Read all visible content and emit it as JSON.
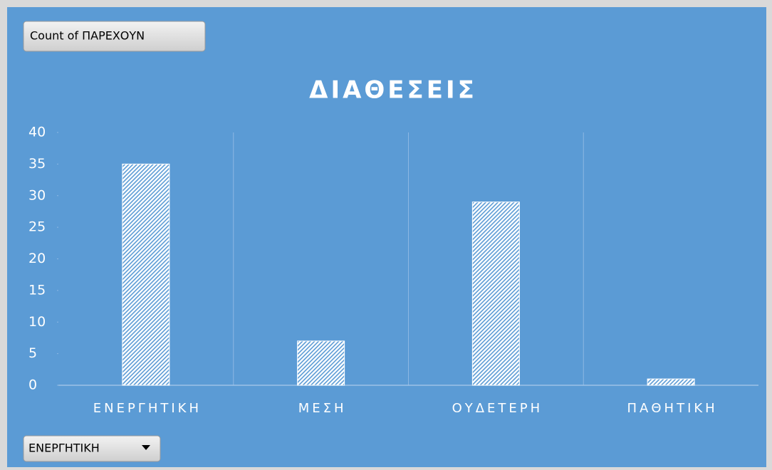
{
  "chart_data": {
    "type": "bar",
    "title": "ΔΙΑΘΕΣΕΙΣ",
    "value_field_button": "Count of ΠΑΡΕΧΟΥΝ",
    "axis_field_button": "ΕΝΕΡΓΗΤΙΚΗ",
    "categories": [
      "ΕΝΕΡΓΗΤΙΚΗ",
      "ΜΕΣΗ",
      "ΟΥΔΕΤΕΡΗ",
      "ΠΑΘΗΤΙΚΗ"
    ],
    "values": [
      35,
      7,
      29,
      1
    ],
    "color": "#ffffff",
    "ylim": [
      0,
      40
    ],
    "yticks": [
      0,
      5,
      10,
      15,
      20,
      25,
      30,
      35,
      40
    ]
  }
}
